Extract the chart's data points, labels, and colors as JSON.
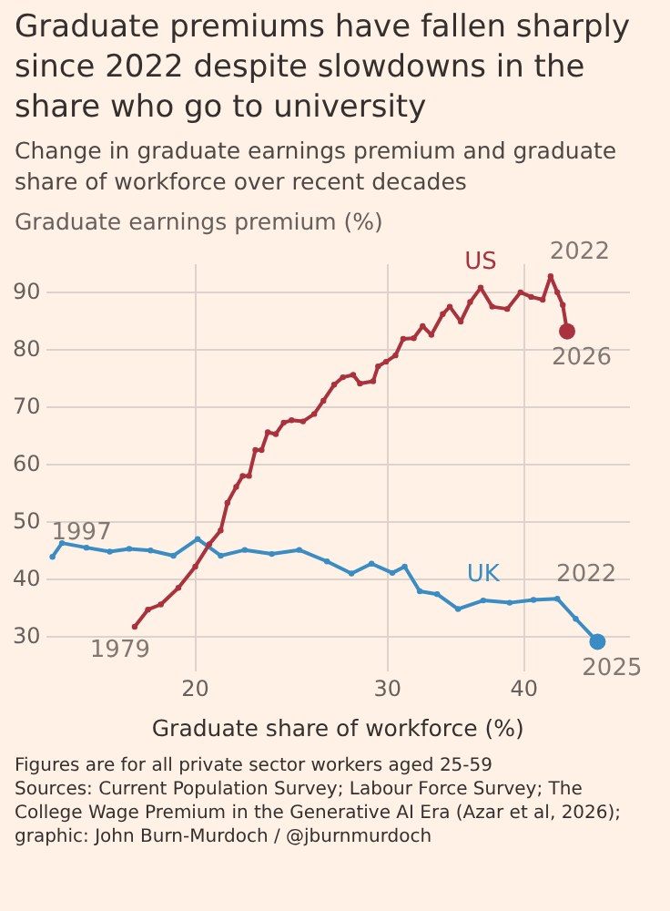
{
  "chart_data": {
    "type": "line",
    "title": "Graduate premiums have fallen sharply since 2022 despite slowdowns in the share who go to university",
    "subtitle": "Change in graduate earnings premium and graduate share of workforce over recent decades",
    "xlabel": "Graduate share of workforce (%)",
    "ylabel": "Graduate earnings premium (%)",
    "log": "x",
    "xlim": [
      14.6,
      50
    ],
    "xticks": [
      20,
      30,
      40
    ],
    "ylim": [
      24,
      95
    ],
    "yticks": [
      30,
      40,
      50,
      60,
      70,
      80,
      90
    ],
    "grid": true,
    "legend": false,
    "marker": "circle",
    "line_style": "solid",
    "series": [
      {
        "name": "US",
        "color": "#a8323e",
        "x": [
          17.6,
          18.1,
          18.6,
          19.3,
          20.0,
          20.6,
          21.1,
          21.4,
          21.8,
          22.1,
          22.4,
          22.7,
          23.0,
          23.3,
          23.7,
          24.1,
          24.5,
          25.1,
          25.7,
          26.2,
          26.8,
          27.3,
          27.9,
          28.3,
          29.1,
          29.4,
          29.9,
          30.5,
          31.0,
          31.7,
          32.3,
          32.9,
          33.7,
          34.2,
          35.0,
          35.7,
          36.5,
          37.4,
          38.6,
          39.7,
          40.6,
          41.6,
          42.3,
          42.9,
          43.4,
          43.8
        ],
        "values": [
          31.8,
          34.8,
          35.7,
          38.6,
          42.3,
          46.2,
          48.6,
          53.4,
          56.2,
          58.1,
          58.1,
          62.6,
          62.6,
          65.7,
          65.4,
          67.4,
          67.8,
          67.6,
          68.9,
          71.2,
          74.0,
          75.3,
          75.7,
          74.2,
          74.6,
          77.2,
          78.0,
          79.1,
          82.0,
          82.1,
          84.2,
          82.7,
          86.3,
          87.6,
          85.0,
          88.4,
          90.9,
          87.6,
          87.2,
          90.1,
          89.3,
          88.8,
          92.9,
          90.1,
          87.9,
          83.3
        ]
      },
      {
        "name": "UK",
        "color": "#3a8cc4",
        "x": [
          14.8,
          15.1,
          15.9,
          16.7,
          17.4,
          18.2,
          19.1,
          20.1,
          21.1,
          22.2,
          23.5,
          24.9,
          26.4,
          27.8,
          29.0,
          30.3,
          31.1,
          32.1,
          33.3,
          34.8,
          36.7,
          38.8,
          40.8,
          42.9,
          44.6,
          46.7
        ],
        "values": [
          44.0,
          46.4,
          45.6,
          44.9,
          45.4,
          45.1,
          44.2,
          47.1,
          44.2,
          45.2,
          44.5,
          45.2,
          43.2,
          41.1,
          42.8,
          41.2,
          42.3,
          38.0,
          37.5,
          34.9,
          36.4,
          36.0,
          36.5,
          36.7,
          33.2,
          29.2
        ]
      }
    ],
    "annotations": [
      {
        "text": "2022",
        "x": 42.3,
        "y": 92.9
      },
      {
        "text": "2026",
        "x": 43.8,
        "y": 83.3
      },
      {
        "text": "1997",
        "x": 14.8,
        "y": 44.0
      },
      {
        "text": "1979",
        "x": 17.6,
        "y": 31.8
      },
      {
        "text": "2022",
        "x": 42.9,
        "y": 36.7
      },
      {
        "text": "2025",
        "x": 46.7,
        "y": 29.2
      },
      "Figures are for all private sector workers aged 25-59",
      "Sources: Current Population Survey; Labour Force Survey; The College Wage Premium in the Generative AI Era (Azar et al, 2026);",
      "graphic: John Burn-Murdoch / @jburnmurdoch"
    ]
  }
}
